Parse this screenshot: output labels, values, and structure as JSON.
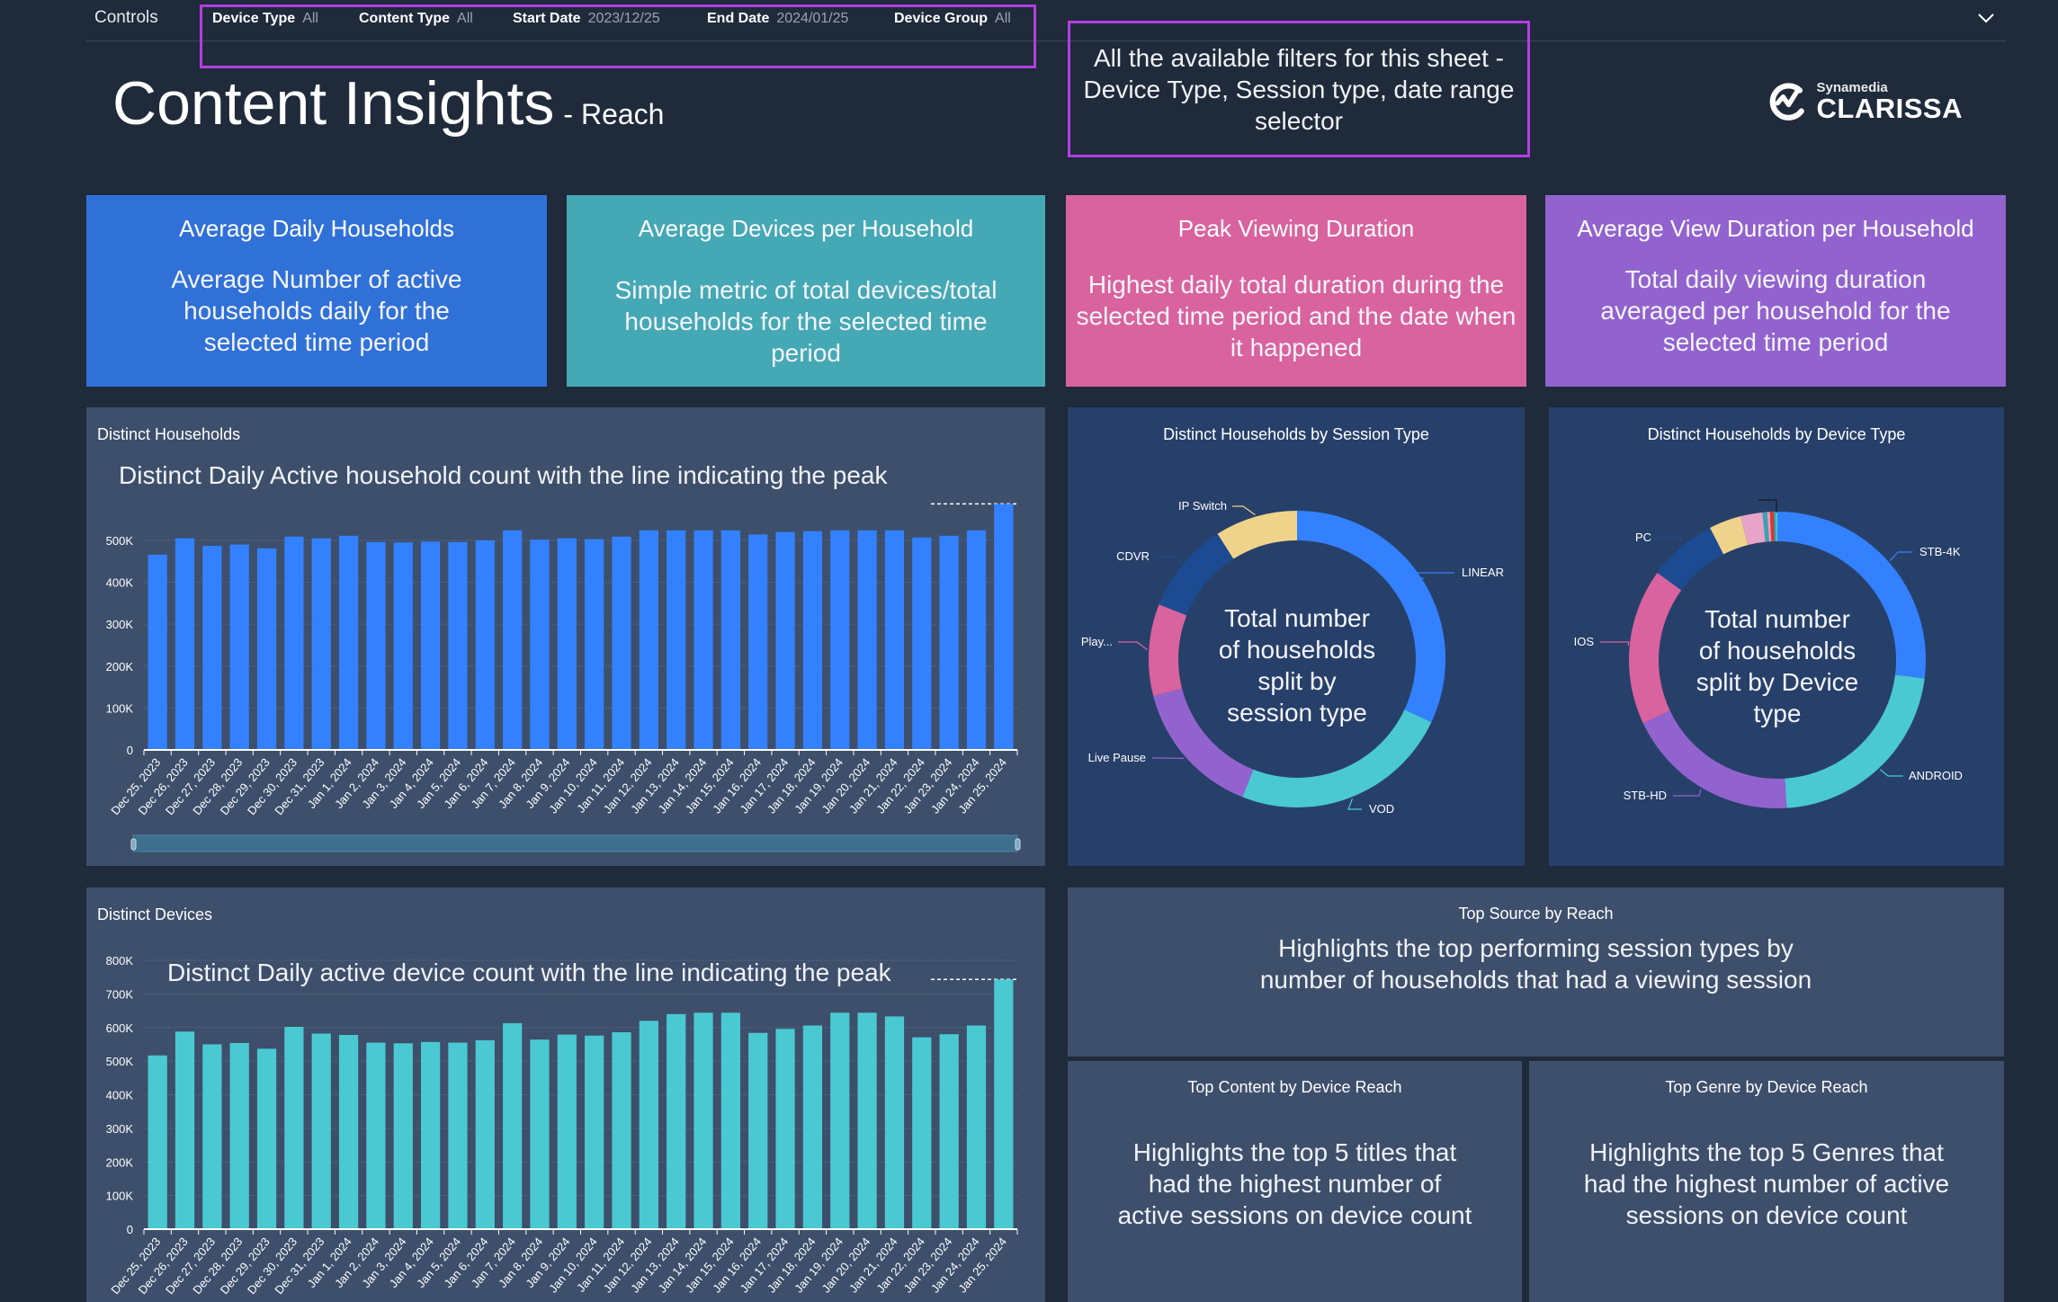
{
  "controls": {
    "label": "Controls",
    "filters": [
      {
        "label": "Device Type",
        "value": "All"
      },
      {
        "label": "Content Type",
        "value": "All"
      },
      {
        "label": "Start Date",
        "value": "2023/12/25"
      },
      {
        "label": "End Date",
        "value": "2024/01/25"
      },
      {
        "label": "Device Group",
        "value": "All"
      }
    ],
    "collapse_icon": "chevron-down-icon"
  },
  "header": {
    "title": "Content Insights",
    "subtitle": "- Reach",
    "annotation": "All the available filters for this sheet - Device Type, Session type, date range selector",
    "logo": {
      "small": "Synamedia",
      "big": "CLARISSA"
    }
  },
  "colors": {
    "background": "#1f2a3a",
    "highlight": "#b23fe0",
    "kpi_blue": "#3071d8",
    "kpi_teal": "#45a8b5",
    "kpi_pink": "#d9639f",
    "kpi_purple": "#9263cf",
    "bar_blue": "#3381ff",
    "bar_teal": "#4ac9d2"
  },
  "kpis": [
    {
      "title": "Average Daily Households",
      "description": "Average Number of active households daily for the selected time period"
    },
    {
      "title": "Average Devices per Household",
      "description": "Simple metric of total devices/total households for the selected time period"
    },
    {
      "title": "Peak Viewing Duration",
      "description": "Highest daily total duration during the selected time period and the date when it happened"
    },
    {
      "title": "Average View Duration per Household",
      "description": "Total daily viewing duration averaged per household for the selected time period"
    }
  ],
  "panels": {
    "households": {
      "title": "Distinct Households"
    },
    "devices": {
      "title": "Distinct Devices"
    },
    "session_donut": {
      "title": "Distinct Households by Session Type"
    },
    "device_donut": {
      "title": "Distinct Households by Device Type"
    },
    "top_source": {
      "title": "Top Source by Reach",
      "description": "Highlights the top performing session types by number of households that had a viewing session"
    },
    "top_content": {
      "title": "Top Content by Device Reach",
      "description": "Highlights the top 5 titles that had the highest number of active sessions on device count"
    },
    "top_genre": {
      "title": "Top Genre by Device Reach",
      "description": "Highlights the top 5 Genres that had the highest number of active sessions on device count"
    }
  },
  "chart_data": [
    {
      "type": "bar",
      "title": "Distinct Households",
      "annotation": "Distinct Daily Active household count with the line indicating the peak",
      "xlabel": "",
      "ylabel": "",
      "ylim": [
        0,
        560000
      ],
      "yticks": [
        0,
        100000,
        200000,
        300000,
        400000,
        500000
      ],
      "ytick_labels": [
        "0",
        "100K",
        "200K",
        "300K",
        "400K",
        "500K"
      ],
      "grid": true,
      "categories": [
        "Dec 25, 2023",
        "Dec 26, 2023",
        "Dec 27, 2023",
        "Dec 28, 2023",
        "Dec 29, 2023",
        "Dec 30, 2023",
        "Dec 31, 2023",
        "Jan 1, 2024",
        "Jan 2, 2024",
        "Jan 3, 2024",
        "Jan 4, 2024",
        "Jan 5, 2024",
        "Jan 6, 2024",
        "Jan 7, 2024",
        "Jan 8, 2024",
        "Jan 9, 2024",
        "Jan 10, 2024",
        "Jan 11, 2024",
        "Jan 12, 2024",
        "Jan 13, 2024",
        "Jan 14, 2024",
        "Jan 15, 2024",
        "Jan 16, 2024",
        "Jan 17, 2024",
        "Jan 18, 2024",
        "Jan 19, 2024",
        "Jan 20, 2024",
        "Jan 21, 2024",
        "Jan 22, 2024",
        "Jan 23, 2024",
        "Jan 24, 2024",
        "Jan 25, 2024"
      ],
      "values": [
        466000,
        505000,
        487000,
        490000,
        481000,
        509000,
        505000,
        511000,
        496000,
        495000,
        497000,
        496000,
        500000,
        524000,
        502000,
        505000,
        503000,
        509000,
        524000,
        524000,
        524000,
        524000,
        514000,
        520000,
        522000,
        524000,
        524000,
        524000,
        507000,
        511000,
        524000,
        587000
      ],
      "peak_line": 587000,
      "has_scroll_range": true
    },
    {
      "type": "bar",
      "title": "Distinct Devices",
      "annotation": "Distinct Daily active device count with the line indicating the peak",
      "xlabel": "",
      "ylabel": "",
      "ylim": [
        0,
        800000
      ],
      "yticks": [
        0,
        100000,
        200000,
        300000,
        400000,
        500000,
        600000,
        700000,
        800000
      ],
      "ytick_labels": [
        "0",
        "100K",
        "200K",
        "300K",
        "400K",
        "500K",
        "600K",
        "700K",
        "800K"
      ],
      "grid": true,
      "categories": [
        "Dec 25, 2023",
        "Dec 26, 2023",
        "Dec 27, 2023",
        "Dec 28, 2023",
        "Dec 29, 2023",
        "Dec 30, 2023",
        "Dec 31, 2023",
        "Jan 1, 2024",
        "Jan 2, 2024",
        "Jan 3, 2024",
        "Jan 4, 2024",
        "Jan 5, 2024",
        "Jan 6, 2024",
        "Jan 7, 2024",
        "Jan 8, 2024",
        "Jan 9, 2024",
        "Jan 10, 2024",
        "Jan 11, 2024",
        "Jan 12, 2024",
        "Jan 13, 2024",
        "Jan 14, 2024",
        "Jan 15, 2024",
        "Jan 16, 2024",
        "Jan 17, 2024",
        "Jan 18, 2024",
        "Jan 19, 2024",
        "Jan 20, 2024",
        "Jan 21, 2024",
        "Jan 22, 2024",
        "Jan 23, 2024",
        "Jan 24, 2024",
        "Jan 25, 2024"
      ],
      "values": [
        517000,
        588000,
        550000,
        554000,
        537000,
        602000,
        582000,
        578000,
        555000,
        553000,
        557000,
        555000,
        562000,
        613000,
        564000,
        579000,
        576000,
        586000,
        620000,
        640000,
        644000,
        644000,
        584000,
        596000,
        606000,
        644000,
        644000,
        633000,
        571000,
        580000,
        606000,
        743000
      ],
      "peak_line": 743000
    },
    {
      "type": "pie",
      "title": "Distinct Households by Session Type",
      "center_text": "Total number of households split by session type",
      "donut": true,
      "slices": [
        {
          "label": "LINEAR",
          "value": 32,
          "color": "#3381ff"
        },
        {
          "label": "VOD",
          "value": 24,
          "color": "#4ac9d2"
        },
        {
          "label": "Live Pause",
          "value": 15,
          "color": "#9263cf"
        },
        {
          "label": "Play...",
          "value": 10,
          "color": "#d9639f"
        },
        {
          "label": "CDVR",
          "value": 10,
          "color": "#1d4b91"
        },
        {
          "label": "IP Switch",
          "value": 9,
          "color": "#f0d38b"
        }
      ]
    },
    {
      "type": "pie",
      "title": "Distinct Households by Device Type",
      "center_text": "Total number of households split by Device type",
      "donut": true,
      "slices": [
        {
          "label": "STB-4K",
          "value": 27,
          "color": "#3381ff"
        },
        {
          "label": "ANDROID",
          "value": 22,
          "color": "#4ac9d2"
        },
        {
          "label": "STB-HD",
          "value": 19,
          "color": "#9263cf"
        },
        {
          "label": "IOS",
          "value": 17,
          "color": "#d9639f"
        },
        {
          "label": "PC",
          "value": 7.5,
          "color": "#1d4b91"
        },
        {
          "label": "",
          "value": 3.5,
          "color": "#f0d38b"
        },
        {
          "label": "",
          "value": 2.4,
          "color": "#e8a3c9"
        },
        {
          "label": "",
          "value": 0.5,
          "color": "#3aa3b0"
        },
        {
          "label": "",
          "value": 0.3,
          "color": "#e6a0c4"
        },
        {
          "label": "",
          "value": 0.4,
          "color": "#e0362a"
        },
        {
          "label": "",
          "value": 0.2,
          "color": "#2f9ea8"
        },
        {
          "label": "",
          "value": 0.2,
          "color": "#4ac9d2"
        }
      ]
    }
  ]
}
